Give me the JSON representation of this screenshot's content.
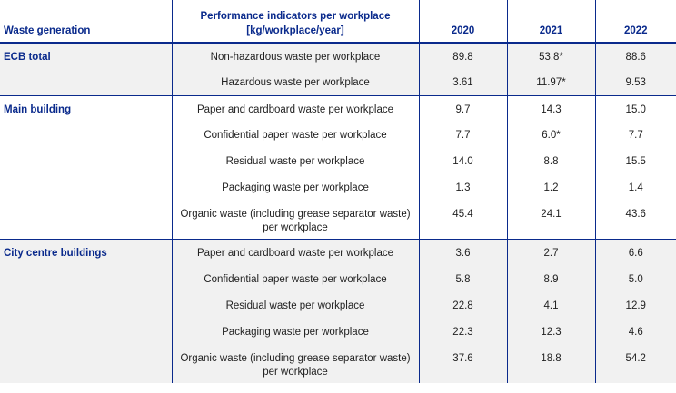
{
  "header": {
    "col_waste": "Waste generation",
    "col_indicator_line1": "Performance indicators per workplace",
    "col_indicator_line2": "[kg/workplace/year]",
    "years": [
      "2020",
      "2021",
      "2022"
    ]
  },
  "sections": [
    {
      "name": "ECB total",
      "rows": [
        {
          "indicator": "Non-hazardous waste per workplace",
          "v2020": "89.8",
          "v2021": "53.8*",
          "v2022": "88.6"
        },
        {
          "indicator": "Hazardous waste per workplace",
          "v2020": "3.61",
          "v2021": "11.97*",
          "v2022": "9.53"
        }
      ]
    },
    {
      "name": "Main building",
      "rows": [
        {
          "indicator": "Paper and cardboard waste per workplace",
          "v2020": "9.7",
          "v2021": "14.3",
          "v2022": "15.0"
        },
        {
          "indicator": "Confidential paper waste per workplace",
          "v2020": "7.7",
          "v2021": "6.0*",
          "v2022": "7.7"
        },
        {
          "indicator": "Residual waste per workplace",
          "v2020": "14.0",
          "v2021": "8.8",
          "v2022": "15.5"
        },
        {
          "indicator": "Packaging waste per workplace",
          "v2020": "1.3",
          "v2021": "1.2",
          "v2022": "1.4"
        },
        {
          "indicator": "Organic waste (including grease separator waste) per workplace",
          "v2020": "45.4",
          "v2021": "24.1",
          "v2022": "43.6"
        }
      ]
    },
    {
      "name": "City centre buildings",
      "rows": [
        {
          "indicator": "Paper and cardboard waste per workplace",
          "v2020": "3.6",
          "v2021": "2.7",
          "v2022": "6.6"
        },
        {
          "indicator": "Confidential paper waste per workplace",
          "v2020": "5.8",
          "v2021": "8.9",
          "v2022": "5.0"
        },
        {
          "indicator": "Residual waste per workplace",
          "v2020": "22.8",
          "v2021": "4.1",
          "v2022": "12.9"
        },
        {
          "indicator": "Packaging waste per workplace",
          "v2020": "22.3",
          "v2021": "12.3",
          "v2022": "4.6"
        },
        {
          "indicator": "Organic waste (including grease separator waste) per workplace",
          "v2020": "37.6",
          "v2021": "18.8",
          "v2022": "54.2"
        }
      ]
    }
  ]
}
